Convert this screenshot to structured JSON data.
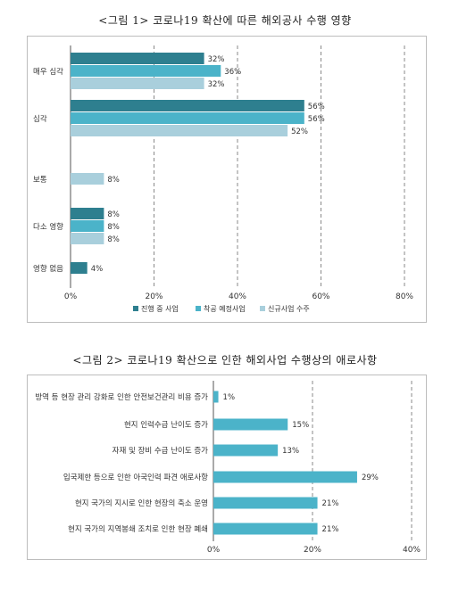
{
  "figure1": {
    "title": "<그림 1> 코로나19 확산에 따른 해외공사 수행 영향",
    "chart_data": {
      "type": "bar",
      "orientation": "horizontal",
      "categories": [
        "매우 심각",
        "심각",
        "보통",
        "다소 영향",
        "영향 없음"
      ],
      "series": [
        {
          "name": "진행 중 사업",
          "color": "#2e7f8f",
          "values": [
            32,
            56,
            null,
            8,
            4
          ]
        },
        {
          "name": "착공 예정사업",
          "color": "#4bb3c9",
          "values": [
            36,
            56,
            null,
            8,
            null
          ]
        },
        {
          "name": "신규사업 수주",
          "color": "#a9cfdc",
          "values": [
            32,
            52,
            8,
            8,
            null
          ]
        }
      ],
      "xlim": [
        0,
        80
      ],
      "ticks": [
        0,
        20,
        40,
        60,
        80
      ],
      "tick_suffix": "%",
      "legend_position": "bottom",
      "grid": true
    }
  },
  "figure2": {
    "title": "<그림 2> 코로나19 확산으로 인한 해외사업 수행상의 애로사항",
    "chart_data": {
      "type": "bar",
      "orientation": "horizontal",
      "categories": [
        "방역 등 현장 관리 강화로 인한 안전보건관리 비용 증가",
        "현지 인력수급 난이도 증가",
        "자재 및 장비 수급 난이도 증가",
        "입국제한 등으로 인한 아국인력 파견 애로사항",
        "현지 국가의 지시로 인한 현장의 축소 운영",
        "현지 국가의 지역봉쇄 조치로 인한 현장 폐쇄"
      ],
      "series": [
        {
          "color": "#4bb3c9",
          "values": [
            1,
            15,
            13,
            29,
            21,
            21
          ]
        }
      ],
      "xlim": [
        0,
        40
      ],
      "ticks": [
        0,
        20,
        40
      ],
      "tick_suffix": "%",
      "grid": true
    }
  }
}
